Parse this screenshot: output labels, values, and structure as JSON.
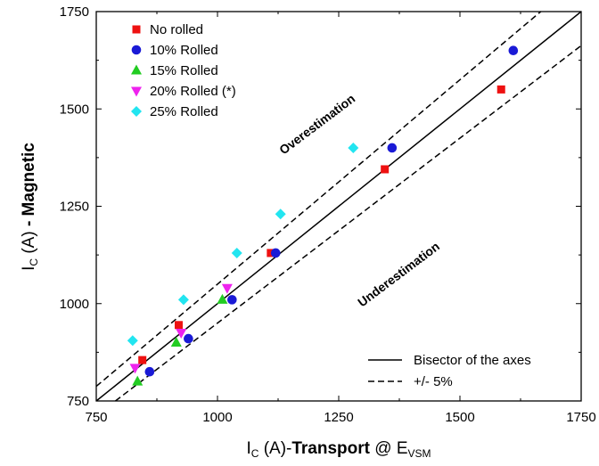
{
  "chart_data": {
    "type": "scatter",
    "x_ticks": [
      750,
      1000,
      1250,
      1500,
      1750
    ],
    "y_ticks": [
      750,
      1000,
      1250,
      1500,
      1750
    ],
    "xlim": [
      750,
      1750
    ],
    "ylim": [
      750,
      1750
    ],
    "grid": false,
    "legend_position": "top-left",
    "xlabel": {
      "main": "I",
      "sub": "C",
      "mid": " (A)-",
      "bold": "Transport",
      "tail": " @ E",
      "sub2": "VSM"
    },
    "ylabel": {
      "main": "I",
      "sub": "C",
      "mid": " (A) ",
      "bold": "- Magnetic"
    },
    "annotations": [
      "Overestimation",
      "Underestimation"
    ],
    "lines": [
      {
        "name": "Bisector of the axes",
        "style": "solid",
        "factor": 1.0
      },
      {
        "name": "+/- 5%",
        "style": "dashed",
        "factors": [
          0.95,
          1.05
        ]
      }
    ],
    "series": [
      {
        "name": "No rolled",
        "marker": "square",
        "color": "#ee1111",
        "points": [
          [
            845,
            855
          ],
          [
            920,
            945
          ],
          [
            1110,
            1130
          ],
          [
            1345,
            1345
          ],
          [
            1585,
            1550
          ]
        ]
      },
      {
        "name": "10% Rolled",
        "marker": "circle",
        "color": "#1a1ad6",
        "points": [
          [
            860,
            825
          ],
          [
            940,
            910
          ],
          [
            1030,
            1010
          ],
          [
            1120,
            1130
          ],
          [
            1360,
            1400
          ],
          [
            1610,
            1650
          ]
        ]
      },
      {
        "name": "15% Rolled",
        "marker": "triangle-up",
        "color": "#22cc22",
        "points": [
          [
            835,
            800
          ],
          [
            915,
            900
          ],
          [
            1010,
            1010
          ]
        ]
      },
      {
        "name": "20% Rolled (*)",
        "marker": "triangle-down",
        "color": "#ee22ee",
        "points": [
          [
            830,
            835
          ],
          [
            925,
            925
          ],
          [
            1020,
            1040
          ]
        ]
      },
      {
        "name": "25% Rolled",
        "marker": "diamond",
        "color": "#22e5f0",
        "points": [
          [
            825,
            905
          ],
          [
            930,
            1010
          ],
          [
            1040,
            1130
          ],
          [
            1130,
            1230
          ],
          [
            1280,
            1400
          ]
        ]
      }
    ]
  }
}
